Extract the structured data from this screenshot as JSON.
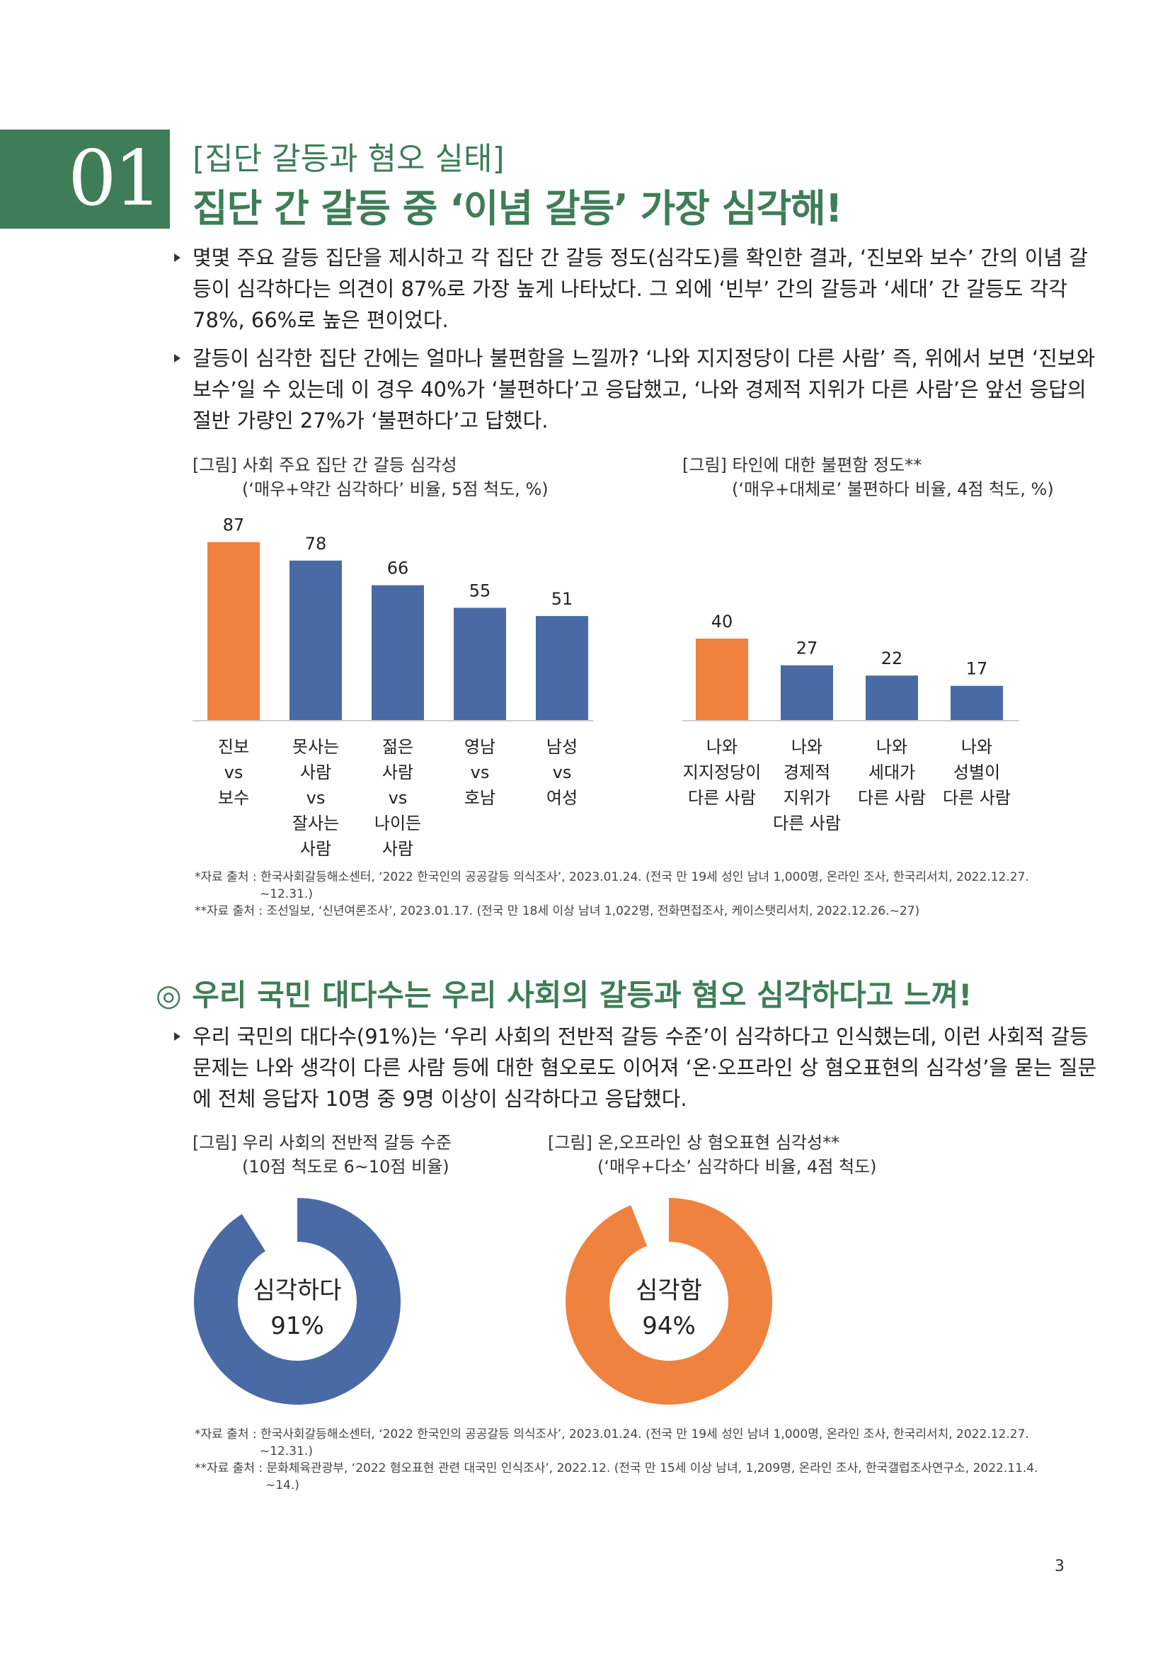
{
  "section": {
    "number": "01",
    "subtitle": "[집단 갈등과 혐오 실태]",
    "title": "집단 간 갈등 중 ‘이념 갈등’ 가장 심각해!"
  },
  "paragraphs_top": [
    {
      "lines": [
        "몇몇 주요 갈등 집단을 제시하고 각 집단 간 갈등 정도(심각도)를 확인한 결과, ‘진보와 보수’ 간의 이념 갈",
        "등이 심각하다는 의견이 87%로 가장 높게 나타났다. 그 외에 ‘빈부’ 간의 갈등과 ‘세대’ 간 갈등도 각각",
        "78%, 66%로 높은 편이었다."
      ]
    },
    {
      "lines": [
        "갈등이 심각한 집단 간에는 얼마나 불편함을 느낄까? ‘나와 지지정당이 다른 사람’ 즉, 위에서 보면 ‘진보와",
        "보수’일 수 있는데 이 경우 40%가 ‘불편하다’고 응답했고, ‘나와 경제적 지위가 다른 사람’은 앞선 응답의",
        "절반 가량인 27%가 ‘불편하다’고 답했다."
      ]
    }
  ],
  "chart1_caption": {
    "line1": "[그림] 사회 주요 집단 간 갈등 심각성",
    "line2": "(‘매우+약간 심각하다’ 비율, 5점 척도, %)"
  },
  "chart2_caption": {
    "line1": "[그림] 타인에 대한 불편함 정도**",
    "line2": "(‘매우+대체로’ 불편하다 비율, 4점 척도, %)"
  },
  "notes_top": [
    "*자료 출처 : 한국사회갈등해소센터, ‘2022 한국인의 공공갈등 의식조사’, 2023.01.24. (전국 만 19세 성인 남녀 1,000명, 온라인 조사, 한국리서치, 2022.12.27.",
    "~12.31.)",
    "**자료 출처 : 조선일보, ‘신년여론조사’, 2023.01.17. (전국 만 18세 이상 남녀 1,022명, 전화면접조사, 케이스탯리서치, 2022.12.26.~27)"
  ],
  "section2_title": "◎ 우리 국민 대다수는 우리 사회의 갈등과 혐오 심각하다고 느껴!",
  "paragraph_bottom": {
    "lines": [
      "우리 국민의 대다수(91%)는 ‘우리 사회의 전반적 갈등 수준’이 심각하다고 인식했는데, 이런 사회적 갈등",
      "문제는 나와 생각이 다른 사람 등에 대한 혐오로도 이어져 ‘온·오프라인 상 혐오표현의 심각성’을 묻는 질문",
      "에 전체 응답자 10명 중 9명 이상이 심각하다고 응답했다."
    ]
  },
  "chart3_caption": {
    "line1": "[그림] 우리 사회의 전반적 갈등 수준",
    "line2": "(10점 척도로 6~10점 비율)"
  },
  "chart4_caption": {
    "line1": "[그림] 온,오프라인 상 혐오표현 심각성**",
    "line2": "(‘매우+다소’ 심각하다 비율, 4점 척도)"
  },
  "notes_bottom": [
    "*자료 출처 : 한국사회갈등해소센터, ‘2022 한국인의 공공갈등 의식조사’, 2023.01.24. (전국 만 19세 성인 남녀 1,000명, 온라인 조사, 한국리서치, 2022.12.27.",
    "~12.31.)",
    "**자료 출처 : 문화체육관광부, ‘2022 혐오표현 관련 대국민 인식조사’, 2022.12. (전국 만 15세 이상 남녀, 1,209명, 온라인 조사, 한국갤럽조사연구소, 2022.11.4.",
    "~14.)"
  ],
  "page_number": "3",
  "colors": {
    "orange": "#f0823f",
    "blue": "#4a6aa6",
    "green": "#3e7d57"
  },
  "chart_data": [
    {
      "type": "bar",
      "categories": [
        [
          "진보",
          "vs",
          "보수"
        ],
        [
          "못사는",
          "사람",
          "vs",
          "잘사는",
          "사람"
        ],
        [
          "젊은",
          "사람",
          "vs",
          "나이든",
          "사람"
        ],
        [
          "영남",
          "vs",
          "호남"
        ],
        [
          "남성",
          "vs",
          "여성"
        ]
      ],
      "values": [
        87,
        78,
        66,
        55,
        51
      ],
      "highlight_index": 0,
      "ylim": [
        0,
        100
      ]
    },
    {
      "type": "bar",
      "categories": [
        [
          "나와",
          "지지정당이",
          "다른 사람"
        ],
        [
          "나와",
          "경제적",
          "지위가",
          "다른 사람"
        ],
        [
          "나와",
          "세대가",
          "다른 사람"
        ],
        [
          "나와",
          "성별이",
          "다른 사람"
        ]
      ],
      "values": [
        40,
        27,
        22,
        17
      ],
      "highlight_index": 0,
      "ylim": [
        0,
        100
      ]
    },
    {
      "type": "pie",
      "label": "심각하다",
      "value_label": "91%",
      "value": 91,
      "color": "#4a6aa6"
    },
    {
      "type": "pie",
      "label": "심각함",
      "value_label": "94%",
      "value": 94,
      "color": "#f0823f"
    }
  ]
}
